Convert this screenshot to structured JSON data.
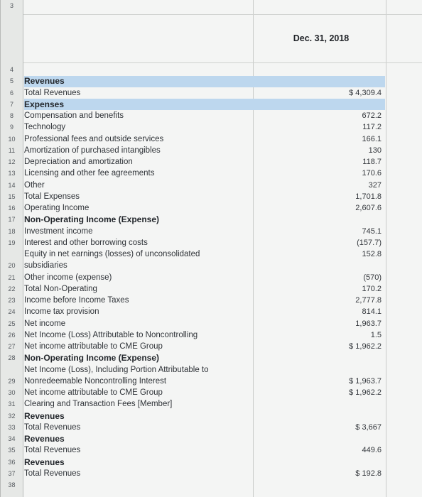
{
  "header": {
    "top_row_number": "3",
    "column_title": "Dec. 31, 2018"
  },
  "rows": [
    {
      "num": "4",
      "label": "",
      "value": "",
      "bold": false
    },
    {
      "num": "5",
      "label": "Revenues",
      "value": "",
      "bold": true
    },
    {
      "num": "6",
      "label": "Total Revenues",
      "value": "$ 4,309.4",
      "bold": false
    },
    {
      "num": "7",
      "label": "Expenses",
      "value": "",
      "bold": true
    },
    {
      "num": "8",
      "label": "Compensation and benefits",
      "value": "672.2",
      "bold": false
    },
    {
      "num": "9",
      "label": "Technology",
      "value": "117.2",
      "bold": false
    },
    {
      "num": "10",
      "label": "Professional fees and outside services",
      "value": "166.1",
      "bold": false
    },
    {
      "num": "11",
      "label": "Amortization of purchased intangibles",
      "value": "130",
      "bold": false
    },
    {
      "num": "12",
      "label": "Depreciation and amortization",
      "value": "118.7",
      "bold": false
    },
    {
      "num": "13",
      "label": "Licensing and other fee agreements",
      "value": "170.6",
      "bold": false
    },
    {
      "num": "14",
      "label": "Other",
      "value": "327",
      "bold": false
    },
    {
      "num": "15",
      "label": "Total Expenses",
      "value": "1,701.8",
      "bold": false
    },
    {
      "num": "16",
      "label": "Operating Income",
      "value": "2,607.6",
      "bold": false
    },
    {
      "num": "17",
      "label": "Non-Operating Income (Expense)",
      "value": "",
      "bold": true
    },
    {
      "num": "18",
      "label": "Investment income",
      "value": "745.1",
      "bold": false
    },
    {
      "num": "19",
      "label": "Interest and other borrowing costs",
      "value": "(157.7)",
      "bold": false
    },
    {
      "num": "",
      "label": "Equity in net earnings (losses) of unconsolidated",
      "value": "152.8",
      "bold": false
    },
    {
      "num": "20",
      "label": "subsidiaries",
      "value": "",
      "bold": false
    },
    {
      "num": "21",
      "label": "Other income (expense)",
      "value": "(570)",
      "bold": false
    },
    {
      "num": "22",
      "label": "Total Non-Operating",
      "value": "170.2",
      "bold": false
    },
    {
      "num": "23",
      "label": "Income before Income Taxes",
      "value": "2,777.8",
      "bold": false
    },
    {
      "num": "24",
      "label": "Income tax provision",
      "value": "814.1",
      "bold": false
    },
    {
      "num": "25",
      "label": "Net income",
      "value": "1,963.7",
      "bold": false
    },
    {
      "num": "26",
      "label": "Net Income (Loss) Attributable to Noncontrolling",
      "value": "1.5",
      "bold": false
    },
    {
      "num": "27",
      "label": "Net income attributable to CME Group",
      "value": "$ 1,962.2",
      "bold": false
    },
    {
      "num": "28",
      "label": "Non-Operating Income (Expense)",
      "value": "",
      "bold": true
    },
    {
      "num": "",
      "label": "Net Income (Loss), Including Portion Attributable to",
      "value": "",
      "bold": false
    },
    {
      "num": "29",
      "label": "Nonredeemable Noncontrolling Interest",
      "value": "$ 1,963.7",
      "bold": false
    },
    {
      "num": "30",
      "label": "Net income attributable to CME Group",
      "value": "$ 1,962.2",
      "bold": false
    },
    {
      "num": "31",
      "label": "Clearing and Transaction Fees [Member]",
      "value": "",
      "bold": false
    },
    {
      "num": "32",
      "label": "Revenues",
      "value": "",
      "bold": true
    },
    {
      "num": "33",
      "label": "Total Revenues",
      "value": "$ 3,667",
      "bold": false
    },
    {
      "num": "34",
      "label": "Revenues",
      "value": "",
      "bold": true
    },
    {
      "num": "35",
      "label": "Total Revenues",
      "value": "449.6",
      "bold": false
    },
    {
      "num": "36",
      "label": "Revenues",
      "value": "",
      "bold": true
    },
    {
      "num": "37",
      "label": "Total Revenues",
      "value": "$ 192.8",
      "bold": false
    },
    {
      "num": "38",
      "label": "",
      "value": "",
      "bold": false
    }
  ]
}
